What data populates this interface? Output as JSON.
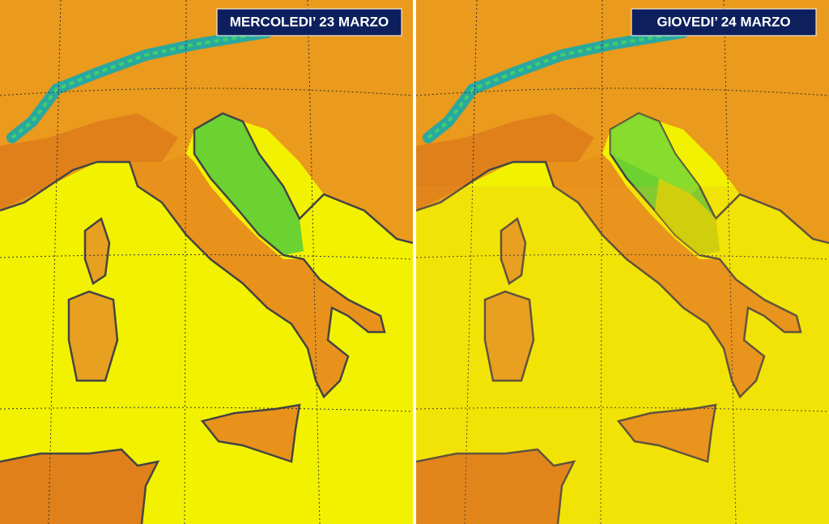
{
  "panels": [
    {
      "title": "MERCOLEDI’ 23 MARZO"
    },
    {
      "title": "GIOVEDI’ 24 MARZO"
    }
  ]
}
